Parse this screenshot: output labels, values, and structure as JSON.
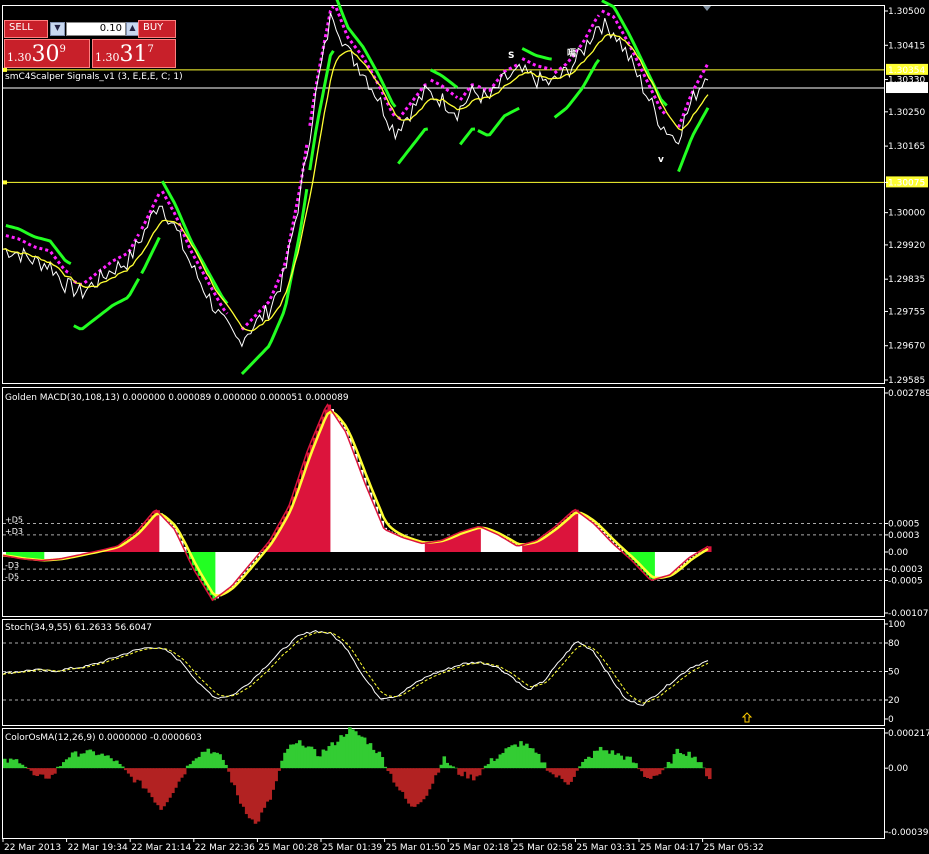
{
  "trade_panel": {
    "sell_label": "SELL",
    "buy_label": "BUY",
    "lot_value": "0.10",
    "sell_price": {
      "big": "1.30",
      "main": "30",
      "sup": "9"
    },
    "buy_price": {
      "big": "1.30",
      "main": "31",
      "sup": "7"
    }
  },
  "colors": {
    "price": "#ffffff",
    "signal_magenta": "#ff22ff",
    "signal_green": "#22ff22",
    "ma_yellow": "#ffff33",
    "hist_red": "#dc143c",
    "osma_green": "#33cc33",
    "osma_red": "#b22222"
  },
  "x_labels": [
    "22 Mar 2013",
    "22 Mar 19:34",
    "22 Mar 21:14",
    "22 Mar 22:36",
    "25 Mar 00:28",
    "25 Mar 01:39",
    "25 Mar 01:50",
    "25 Mar 02:18",
    "25 Mar 02:58",
    "25 Mar 03:31",
    "25 Mar 04:17",
    "25 Mar 05:32"
  ],
  "chart_data": [
    {
      "type": "line",
      "title": "smC4Scalper Signals_v1 (3, E,E,E, C; 1)",
      "y_ticks": [
        "1.30500",
        "1.30415",
        "1.30330",
        "1.30250",
        "1.30165",
        "1.30075",
        "1.30000",
        "1.29920",
        "1.29835",
        "1.29755",
        "1.29670",
        "1.29585"
      ],
      "ylim": [
        1.29585,
        1.305
      ],
      "hlines": [
        {
          "value": "1.30354",
          "color": "#ffff33"
        },
        {
          "value": "1.30309",
          "color": "#ffffff"
        },
        {
          "value": "1.30075",
          "color": "#ffff33"
        }
      ],
      "price_trend": [
        1.2991,
        1.299,
        1.2988,
        1.2987,
        1.2982,
        1.298,
        1.2983,
        1.2986,
        1.2988,
        1.2995,
        1.3003,
        1.2996,
        1.2987,
        1.298,
        1.2973,
        1.2968,
        1.2972,
        1.2976,
        1.2985,
        1.3005,
        1.303,
        1.305,
        1.304,
        1.3035,
        1.3028,
        1.302,
        1.3025,
        1.303,
        1.3028,
        1.3025,
        1.303,
        1.3028,
        1.3033,
        1.3035,
        1.3033,
        1.3032,
        1.3035,
        1.304,
        1.3047,
        1.3045,
        1.3038,
        1.303,
        1.3022,
        1.3018,
        1.3028,
        1.3035
      ],
      "markers": [
        "S",
        "嘕",
        "v"
      ]
    },
    {
      "type": "bar",
      "title": "Golden MACD(30,108,13) 0.000000 0.000089 0.000000 0.000051 0.000089",
      "y_ticks": [
        "0.002789",
        "0.0005",
        "0.0003",
        "0.00",
        "-0.0003",
        "-0.0005",
        "-0.00107"
      ],
      "level_labels": [
        "+D5",
        "+D3",
        "-D3",
        "-D5"
      ],
      "ylim": [
        -0.00107,
        0.002789
      ],
      "values": [
        -6e-05,
        -0.00012,
        -0.00015,
        -0.00012,
        -5e-05,
        2e-05,
        0.0001,
        0.00035,
        0.00075,
        0.0004,
        -0.0003,
        -0.00085,
        -0.0006,
        -0.0002,
        0.0002,
        0.0008,
        0.0018,
        0.0026,
        0.0021,
        0.0012,
        0.0004,
        0.00025,
        0.00015,
        0.0002,
        0.00035,
        0.00045,
        0.0003,
        0.0001,
        0.0002,
        0.00045,
        0.00075,
        0.0005,
        0.00015,
        -0.00015,
        -0.0005,
        -0.0004,
        -0.0001,
        0.0001
      ]
    },
    {
      "type": "line",
      "title": "Stoch(34,9,55) 61.2633 56.6047",
      "y_ticks": [
        "100",
        "80",
        "50",
        "20",
        "0"
      ],
      "ylim": [
        0,
        100
      ],
      "values": [
        48,
        50,
        52,
        50,
        53,
        55,
        60,
        66,
        72,
        76,
        72,
        58,
        36,
        22,
        25,
        38,
        55,
        72,
        87,
        93,
        90,
        74,
        44,
        22,
        24,
        36,
        46,
        52,
        58,
        60,
        56,
        45,
        30,
        40,
        62,
        82,
        72,
        45,
        20,
        15,
        28,
        42,
        55,
        61
      ]
    },
    {
      "type": "bar",
      "title": "ColorOsMA(12,26,9) 0.0000000 -0.0000603",
      "y_ticks": [
        "0.000217",
        "0.00",
        "-0.000394"
      ],
      "ylim": [
        -0.000394,
        0.000217
      ],
      "values": [
        4e-05,
        5e-05,
        -6e-05,
        -5e-05,
        7e-05,
        0.0001,
        9e-05,
        5e-05,
        -5e-05,
        -0.00012,
        -0.00025,
        -0.0001,
        6e-05,
        0.00012,
        5e-05,
        -0.0002,
        -0.00035,
        -0.00018,
        0.00012,
        0.00016,
        8e-05,
        0.00015,
        0.00024,
        0.00018,
        8e-05,
        -0.0001,
        -0.00025,
        -0.00015,
        6e-05,
        -3e-05,
        -6e-05,
        4e-05,
        0.00011,
        0.00016,
        8e-05,
        -4e-05,
        -9e-05,
        4e-05,
        0.00012,
        9e-05,
        5e-05,
        -6e-05,
        -3e-05,
        0.00011,
        8e-05,
        -6e-05
      ]
    }
  ]
}
